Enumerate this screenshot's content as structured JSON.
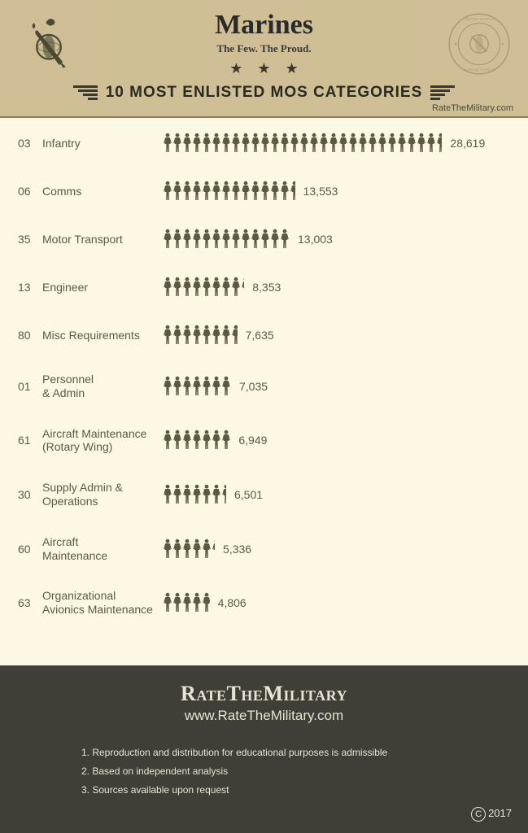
{
  "header": {
    "title": "Marines",
    "slogan": "The Few. The Proud.",
    "subtitle": "10 MOST ENLISTED MOS CATEGORIES",
    "site_ref": "RateTheMilitary.com"
  },
  "chart": {
    "type": "pictogram-bar",
    "icon_unit": 1000,
    "icon_color": "#5a5a40",
    "background_color": "#fdf8e4",
    "label_fontsize": 14,
    "label_color": "#5a5a45",
    "value_fontsize": 14,
    "rows": [
      {
        "code": "03",
        "label": "Infantry",
        "value": 28619,
        "value_text": "28,619"
      },
      {
        "code": "06",
        "label": "Comms",
        "value": 13553,
        "value_text": "13,553"
      },
      {
        "code": "35",
        "label": "Motor Transport",
        "value": 13003,
        "value_text": "13,003"
      },
      {
        "code": "13",
        "label": "Engineer",
        "value": 8353,
        "value_text": "8,353"
      },
      {
        "code": "80",
        "label": "Misc Requirements",
        "value": 7635,
        "value_text": "7,635"
      },
      {
        "code": "01",
        "label": "Personnel\n& Admin",
        "value": 7035,
        "value_text": "7,035"
      },
      {
        "code": "61",
        "label": "Aircraft Maintenance\n(Rotary Wing)",
        "value": 6949,
        "value_text": "6,949"
      },
      {
        "code": "30",
        "label": "Supply Admin &\nOperations",
        "value": 6501,
        "value_text": "6,501"
      },
      {
        "code": "60",
        "label": "Aircraft\nMaintenance",
        "value": 5336,
        "value_text": "5,336"
      },
      {
        "code": "63",
        "label": "Organizational\nAvionics Maintenance",
        "value": 4806,
        "value_text": "4,806"
      }
    ]
  },
  "footer": {
    "brand": "RateTheMilitary",
    "url": "www.RateTheMilitary.com",
    "notes": [
      "1. Reproduction and distribution for educational purposes is admissible",
      "2. Based on independent analysis",
      "3. Sources available upon request"
    ],
    "copyright_year": "2017"
  },
  "colors": {
    "header_bg": "#d4c49a",
    "body_bg": "#fdf8e4",
    "footer_bg": "#3f3f38",
    "footer_text": "#e8e4d4",
    "icon": "#5a5a40"
  }
}
